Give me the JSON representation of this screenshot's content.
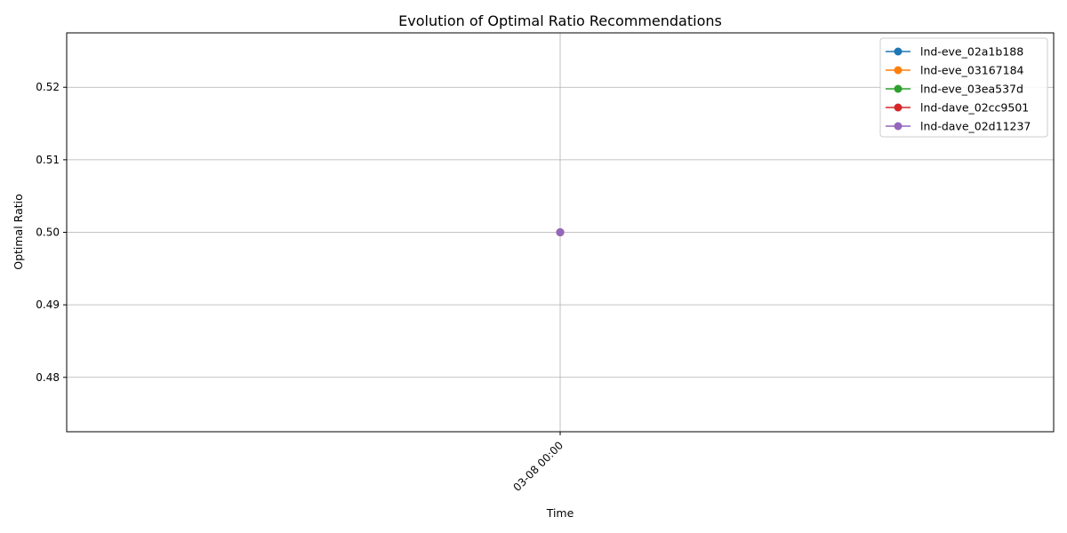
{
  "chart_data": {
    "type": "line",
    "title": "Evolution of Optimal Ratio Recommendations",
    "xlabel": "Time",
    "ylabel": "Optimal Ratio",
    "x": [
      "03-08 00:00"
    ],
    "ylim": [
      0.4725,
      0.5275
    ],
    "yticks": [
      0.48,
      0.49,
      0.5,
      0.51,
      0.52
    ],
    "ytick_labels": [
      "0.48",
      "0.49",
      "0.50",
      "0.51",
      "0.52"
    ],
    "grid": true,
    "legend_position": "top-right",
    "series": [
      {
        "name": "lnd-eve_02a1b188",
        "values": [
          0.5
        ],
        "color": "#1f77b4"
      },
      {
        "name": "lnd-eve_03167184",
        "values": [
          0.5
        ],
        "color": "#ff7f0e"
      },
      {
        "name": "lnd-eve_03ea537d",
        "values": [
          0.5
        ],
        "color": "#2ca02c"
      },
      {
        "name": "lnd-dave_02cc9501",
        "values": [
          0.5
        ],
        "color": "#d62728"
      },
      {
        "name": "lnd-dave_02d11237",
        "values": [
          0.5
        ],
        "color": "#9467bd"
      }
    ]
  }
}
